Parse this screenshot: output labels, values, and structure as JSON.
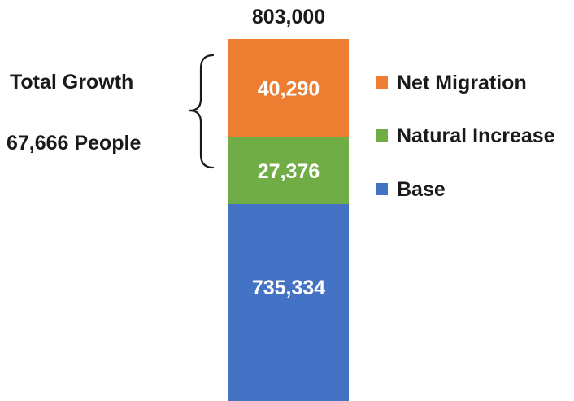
{
  "chart_data": {
    "type": "bar",
    "stacked": true,
    "categories": [
      ""
    ],
    "series": [
      {
        "name": "Base",
        "values": [
          735334
        ],
        "label": "735,334",
        "color": "#4472c4"
      },
      {
        "name": "Natural Increase",
        "values": [
          27376
        ],
        "label": "27,376",
        "color": "#70ad47"
      },
      {
        "name": "Net Migration",
        "values": [
          40290
        ],
        "label": "40,290",
        "color": "#ed7d31"
      }
    ],
    "total": 803000,
    "total_label": "803,000",
    "annotation": {
      "line1": "Total Growth",
      "line2": "67,666 People",
      "covers": [
        "Natural Increase",
        "Net Migration"
      ]
    },
    "legend": {
      "placement": "right",
      "order": [
        "Net Migration",
        "Natural Increase",
        "Base"
      ]
    },
    "grid": false,
    "title": "",
    "xlabel": "",
    "ylabel": ""
  }
}
